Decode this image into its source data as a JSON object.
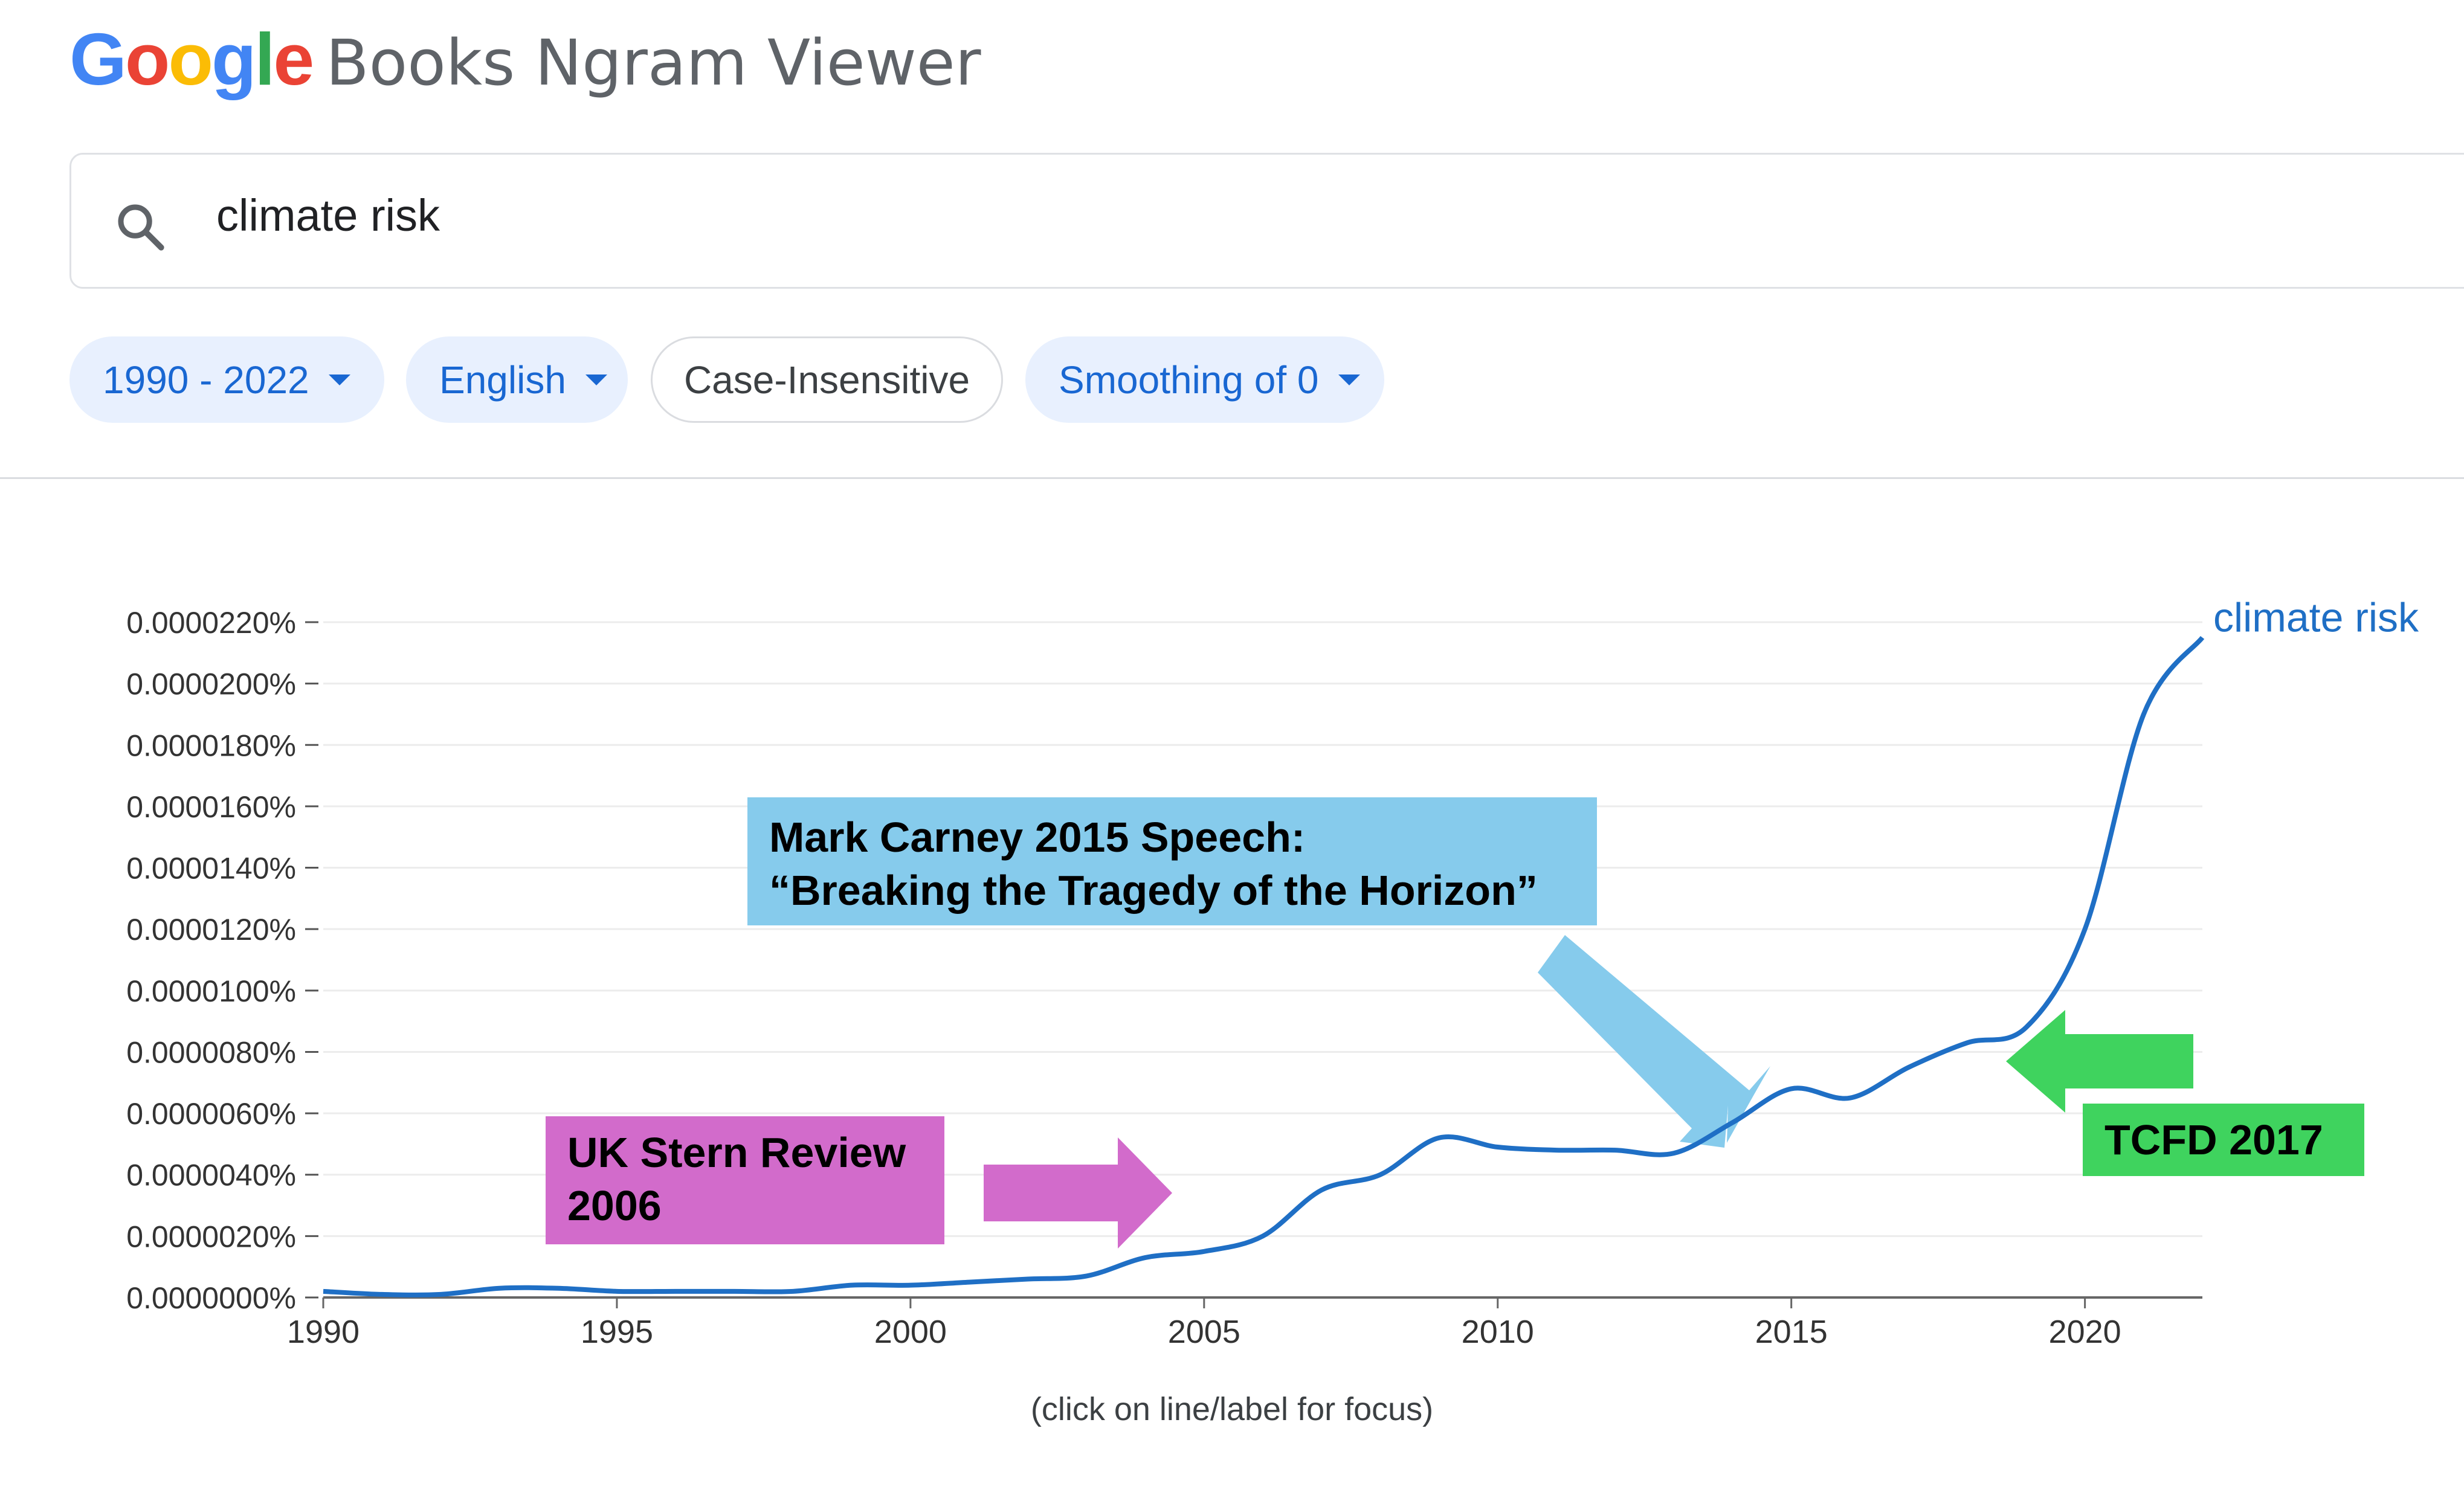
{
  "header": {
    "logo_google": [
      "G",
      "o",
      "o",
      "g",
      "l",
      "e"
    ],
    "logo_colors": [
      "#4285F4",
      "#EA4335",
      "#FBBC05",
      "#4285F4",
      "#34A853",
      "#EA4335"
    ],
    "logo_rest": "Books Ngram Viewer"
  },
  "search": {
    "icon": "search-icon",
    "query": "climate risk"
  },
  "filters": {
    "year_range": "1990 - 2022",
    "language": "English",
    "case": "Case-Insensitive",
    "smoothing": "Smoothing of 0"
  },
  "chart_data": {
    "type": "line",
    "xlim": [
      1990,
      2022
    ],
    "ylim": [
      0,
      2.2e-05
    ],
    "x_ticks": [
      1990,
      1995,
      2000,
      2005,
      2010,
      2015,
      2020
    ],
    "x_tick_labels": [
      "1990",
      "1995",
      "2000",
      "2005",
      "2010",
      "2015",
      "2020"
    ],
    "y_ticks": [
      0,
      2e-06,
      4e-06,
      6e-06,
      8e-06,
      1e-05,
      1.2e-05,
      1.4e-05,
      1.6e-05,
      1.8e-05,
      2e-05,
      2.2e-05
    ],
    "y_tick_labels": [
      "0.0000000%",
      "0.0000020%",
      "0.0000040%",
      "0.0000060%",
      "0.0000080%",
      "0.0000100%",
      "0.0000120%",
      "0.0000140%",
      "0.0000160%",
      "0.0000180%",
      "0.0000200%",
      "0.0000220%"
    ],
    "grid": true,
    "series": [
      {
        "name": "climate risk",
        "color": "#1f6fc5",
        "x": [
          1990,
          1991,
          1992,
          1993,
          1994,
          1995,
          1996,
          1997,
          1998,
          1999,
          2000,
          2001,
          2002,
          2003,
          2004,
          2005,
          2006,
          2007,
          2008,
          2009,
          2010,
          2011,
          2012,
          2013,
          2014,
          2015,
          2016,
          2017,
          2018,
          2019,
          2020,
          2021,
          2022
        ],
        "y": [
          2e-07,
          1e-07,
          1e-07,
          3e-07,
          3e-07,
          2e-07,
          2e-07,
          2e-07,
          2e-07,
          4e-07,
          4e-07,
          5e-07,
          6e-07,
          7e-07,
          1.3e-06,
          1.5e-06,
          2e-06,
          3.5e-06,
          4e-06,
          5.2e-06,
          4.9e-06,
          4.8e-06,
          4.8e-06,
          4.7e-06,
          5.7e-06,
          6.8e-06,
          6.5e-06,
          7.5e-06,
          8.3e-06,
          8.8e-06,
          1.2e-05,
          1.9e-05,
          2.15e-05
        ]
      }
    ],
    "annotations": {
      "stern": [
        "UK Stern Review",
        "2006"
      ],
      "carney": [
        "Mark Carney 2015 Speech:",
        "“Breaking the Tragedy of the Horizon”"
      ],
      "tcfd": "TCFD 2017",
      "stern_color": "#d26bcb",
      "carney_color": "#86cbec",
      "tcfd_color": "#3fd35e"
    }
  },
  "footer": {
    "note": "(click on line/label for focus)"
  }
}
